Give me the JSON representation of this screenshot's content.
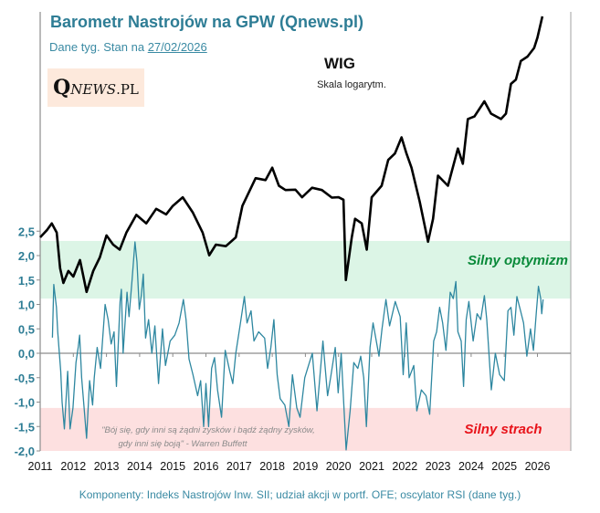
{
  "header": {
    "title": "Barometr Nastrojów na GPW (Qnews.pl)",
    "subtitle_prefix": "Dane tyg. Stan na ",
    "subtitle_date": "27/02/2026",
    "logo_text": "QNEWS.PL"
  },
  "footer": "Komponenty: Indeks Nastrojów Inw. SII; udział akcji w portf. OFE; oscylator RSI (dane tyg.)",
  "chart_data": {
    "type": "line",
    "x_range": [
      2011,
      2027
    ],
    "y_range": [
      -2.0,
      2.5
    ],
    "y_ticks": [
      "2,5",
      "2,0",
      "1,5",
      "1,0",
      "0,5",
      "0,0",
      "-0,5",
      "-1,0",
      "-1,5",
      "-2,0"
    ],
    "y_tick_values": [
      2.5,
      2.0,
      1.5,
      1.0,
      0.5,
      0.0,
      -0.5,
      -1.0,
      -1.5,
      -2.0
    ],
    "x_ticks": [
      "2011",
      "2012",
      "2013",
      "2014",
      "2015",
      "2016",
      "2017",
      "2018",
      "2019",
      "2020",
      "2021",
      "2022",
      "2023",
      "2024",
      "2025",
      "2026"
    ],
    "zones": [
      {
        "label": "Silny optymizm",
        "from": 1.12,
        "to": 2.3,
        "color": "#dcf5e6",
        "label_color": "#0a8a3a"
      },
      {
        "label": "Silny strach",
        "from": -2.0,
        "to": -1.12,
        "color": "#fde0e0",
        "label_color": "#e8141b"
      }
    ],
    "annotation": {
      "quote_line1": "\"Bój się, gdy inni są żądni zysków i bądź żądny zysków,",
      "quote_line2": "gdy inni się boją\" - Warren Buffett"
    },
    "wig_label": "WIG",
    "wig_scale_note": "Skala logarytm.",
    "series": [
      {
        "key": "barometer",
        "color": "#2e87a0",
        "points": [
          [
            2011.37,
            0.32
          ],
          [
            2011.41,
            1.41
          ],
          [
            2011.49,
            0.94
          ],
          [
            2011.53,
            0.44
          ],
          [
            2011.62,
            -0.37
          ],
          [
            2011.66,
            -1.0
          ],
          [
            2011.73,
            -1.55
          ],
          [
            2011.83,
            -0.37
          ],
          [
            2011.9,
            -1.55
          ],
          [
            2011.99,
            -1.12
          ],
          [
            2012.08,
            -0.19
          ],
          [
            2012.15,
            0.13
          ],
          [
            2012.19,
            0.37
          ],
          [
            2012.25,
            -0.5
          ],
          [
            2012.4,
            -1.74
          ],
          [
            2012.49,
            -0.56
          ],
          [
            2012.58,
            -1.06
          ],
          [
            2012.63,
            -0.5
          ],
          [
            2012.72,
            0.12
          ],
          [
            2012.82,
            -0.31
          ],
          [
            2012.96,
            1.0
          ],
          [
            2013.05,
            0.69
          ],
          [
            2013.14,
            0.19
          ],
          [
            2013.23,
            0.44
          ],
          [
            2013.3,
            -0.68
          ],
          [
            2013.41,
            1.06
          ],
          [
            2013.45,
            1.31
          ],
          [
            2013.5,
            0.0
          ],
          [
            2013.62,
            1.25
          ],
          [
            2013.68,
            0.75
          ],
          [
            2013.77,
            1.5
          ],
          [
            2013.86,
            2.28
          ],
          [
            2013.92,
            1.87
          ],
          [
            2013.99,
            0.9
          ],
          [
            2014.05,
            1.18
          ],
          [
            2014.11,
            1.62
          ],
          [
            2014.18,
            0.31
          ],
          [
            2014.27,
            0.69
          ],
          [
            2014.37,
            0.0
          ],
          [
            2014.46,
            0.56
          ],
          [
            2014.57,
            -0.62
          ],
          [
            2014.69,
            0.5
          ],
          [
            2014.78,
            -0.25
          ],
          [
            2014.92,
            0.25
          ],
          [
            2015.06,
            0.37
          ],
          [
            2015.19,
            0.62
          ],
          [
            2015.32,
            1.1
          ],
          [
            2015.4,
            0.69
          ],
          [
            2015.49,
            -0.12
          ],
          [
            2015.61,
            -0.44
          ],
          [
            2015.75,
            -0.87
          ],
          [
            2015.84,
            -0.56
          ],
          [
            2015.93,
            -1.5
          ],
          [
            2016.0,
            -0.62
          ],
          [
            2016.08,
            -1.5
          ],
          [
            2016.17,
            -0.31
          ],
          [
            2016.26,
            -0.09
          ],
          [
            2016.35,
            -0.75
          ],
          [
            2016.47,
            -1.31
          ],
          [
            2016.58,
            0.06
          ],
          [
            2016.72,
            -0.37
          ],
          [
            2016.81,
            -0.62
          ],
          [
            2016.9,
            0.0
          ],
          [
            2017.04,
            0.62
          ],
          [
            2017.16,
            1.16
          ],
          [
            2017.24,
            0.62
          ],
          [
            2017.36,
            0.87
          ],
          [
            2017.45,
            0.25
          ],
          [
            2017.59,
            0.44
          ],
          [
            2017.77,
            0.31
          ],
          [
            2017.86,
            -0.31
          ],
          [
            2017.96,
            0.12
          ],
          [
            2018.05,
            0.69
          ],
          [
            2018.15,
            -0.44
          ],
          [
            2018.24,
            -0.93
          ],
          [
            2018.38,
            -1.06
          ],
          [
            2018.5,
            -1.5
          ],
          [
            2018.61,
            -0.44
          ],
          [
            2018.74,
            -1.12
          ],
          [
            2018.84,
            -1.31
          ],
          [
            2018.98,
            -0.5
          ],
          [
            2019.12,
            -0.19
          ],
          [
            2019.21,
            0.0
          ],
          [
            2019.35,
            -1.18
          ],
          [
            2019.53,
            0.25
          ],
          [
            2019.67,
            -0.87
          ],
          [
            2019.76,
            -0.5
          ],
          [
            2019.9,
            0.12
          ],
          [
            2019.99,
            -0.81
          ],
          [
            2020.08,
            0.0
          ],
          [
            2020.23,
            -1.98
          ],
          [
            2020.35,
            -1.18
          ],
          [
            2020.46,
            -0.19
          ],
          [
            2020.58,
            -0.31
          ],
          [
            2020.67,
            -0.06
          ],
          [
            2020.76,
            -0.5
          ],
          [
            2020.84,
            -1.5
          ],
          [
            2020.95,
            0.12
          ],
          [
            2021.04,
            0.62
          ],
          [
            2021.22,
            -0.06
          ],
          [
            2021.31,
            0.5
          ],
          [
            2021.43,
            1.1
          ],
          [
            2021.54,
            0.56
          ],
          [
            2021.71,
            1.06
          ],
          [
            2021.86,
            0.75
          ],
          [
            2021.95,
            -0.44
          ],
          [
            2022.04,
            0.62
          ],
          [
            2022.13,
            -0.5
          ],
          [
            2022.27,
            -0.25
          ],
          [
            2022.36,
            -1.18
          ],
          [
            2022.5,
            -0.75
          ],
          [
            2022.64,
            -0.87
          ],
          [
            2022.75,
            -1.25
          ],
          [
            2022.87,
            0.25
          ],
          [
            2022.96,
            0.44
          ],
          [
            2023.05,
            0.94
          ],
          [
            2023.14,
            0.62
          ],
          [
            2023.24,
            0.06
          ],
          [
            2023.37,
            1.25
          ],
          [
            2023.46,
            1.12
          ],
          [
            2023.54,
            1.47
          ],
          [
            2023.6,
            0.44
          ],
          [
            2023.7,
            0.25
          ],
          [
            2023.77,
            -0.68
          ],
          [
            2023.85,
            0.69
          ],
          [
            2023.93,
            1.06
          ],
          [
            2024.06,
            0.25
          ],
          [
            2024.18,
            0.81
          ],
          [
            2024.29,
            0.69
          ],
          [
            2024.4,
            1.18
          ],
          [
            2024.47,
            0.69
          ],
          [
            2024.61,
            -0.75
          ],
          [
            2024.73,
            0.0
          ],
          [
            2024.86,
            -0.44
          ],
          [
            2025.0,
            -0.56
          ],
          [
            2025.11,
            0.87
          ],
          [
            2025.2,
            0.94
          ],
          [
            2025.29,
            0.37
          ],
          [
            2025.38,
            1.16
          ],
          [
            2025.49,
            0.87
          ],
          [
            2025.58,
            0.62
          ],
          [
            2025.68,
            -0.06
          ],
          [
            2025.79,
            0.5
          ],
          [
            2025.88,
            0.06
          ],
          [
            2025.97,
            0.87
          ],
          [
            2026.03,
            1.37
          ],
          [
            2026.1,
            1.12
          ],
          [
            2026.13,
            0.81
          ],
          [
            2026.17,
            1.1
          ]
        ]
      },
      {
        "key": "wig",
        "name": "WIG",
        "color": "#000000",
        "scale": "log",
        "points": [
          [
            2011.0,
            48000
          ],
          [
            2011.2,
            49500
          ],
          [
            2011.35,
            51000
          ],
          [
            2011.5,
            49000
          ],
          [
            2011.6,
            42000
          ],
          [
            2011.7,
            39400
          ],
          [
            2011.85,
            41500
          ],
          [
            2012.0,
            40500
          ],
          [
            2012.2,
            43500
          ],
          [
            2012.4,
            37900
          ],
          [
            2012.6,
            41500
          ],
          [
            2012.8,
            44000
          ],
          [
            2013.0,
            48400
          ],
          [
            2013.2,
            46500
          ],
          [
            2013.4,
            45500
          ],
          [
            2013.6,
            49000
          ],
          [
            2013.9,
            52900
          ],
          [
            2014.2,
            51000
          ],
          [
            2014.5,
            54300
          ],
          [
            2014.8,
            53000
          ],
          [
            2015.0,
            55000
          ],
          [
            2015.3,
            57100
          ],
          [
            2015.6,
            53500
          ],
          [
            2015.9,
            49000
          ],
          [
            2016.1,
            44400
          ],
          [
            2016.3,
            46500
          ],
          [
            2016.6,
            46200
          ],
          [
            2016.9,
            48000
          ],
          [
            2017.1,
            55000
          ],
          [
            2017.5,
            62000
          ],
          [
            2017.8,
            61500
          ],
          [
            2018.0,
            64900
          ],
          [
            2018.2,
            60000
          ],
          [
            2018.4,
            58900
          ],
          [
            2018.7,
            59000
          ],
          [
            2018.9,
            57100
          ],
          [
            2019.2,
            59500
          ],
          [
            2019.5,
            58900
          ],
          [
            2019.8,
            57000
          ],
          [
            2020.0,
            57100
          ],
          [
            2020.15,
            56500
          ],
          [
            2020.22,
            39900
          ],
          [
            2020.4,
            48000
          ],
          [
            2020.5,
            52000
          ],
          [
            2020.7,
            51000
          ],
          [
            2020.85,
            45500
          ],
          [
            2021.0,
            57100
          ],
          [
            2021.3,
            60000
          ],
          [
            2021.5,
            67100
          ],
          [
            2021.7,
            69000
          ],
          [
            2021.9,
            74000
          ],
          [
            2022.05,
            69000
          ],
          [
            2022.2,
            64900
          ],
          [
            2022.45,
            56000
          ],
          [
            2022.7,
            47100
          ],
          [
            2022.85,
            52000
          ],
          [
            2023.0,
            62700
          ],
          [
            2023.3,
            60000
          ],
          [
            2023.6,
            70500
          ],
          [
            2023.75,
            66000
          ],
          [
            2023.9,
            80100
          ],
          [
            2024.1,
            81000
          ],
          [
            2024.4,
            86500
          ],
          [
            2024.6,
            82000
          ],
          [
            2024.9,
            80100
          ],
          [
            2025.05,
            82000
          ],
          [
            2025.2,
            93300
          ],
          [
            2025.35,
            95000
          ],
          [
            2025.5,
            103000
          ],
          [
            2025.7,
            105000
          ],
          [
            2025.9,
            109000
          ],
          [
            2026.0,
            114000
          ],
          [
            2026.15,
            125000
          ]
        ]
      }
    ]
  }
}
